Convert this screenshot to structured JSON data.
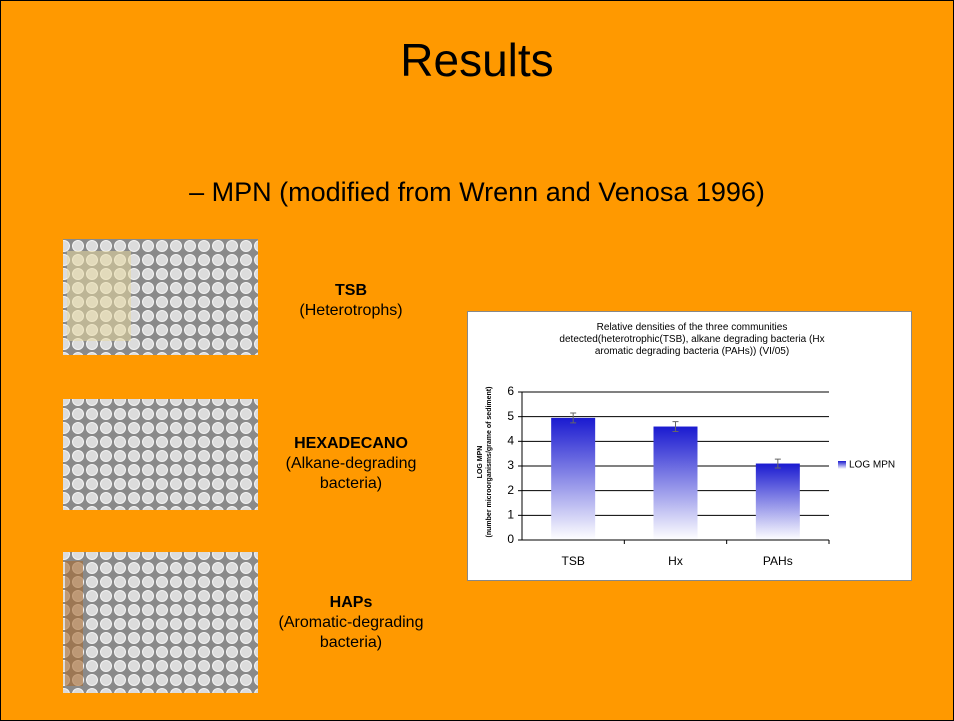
{
  "slide": {
    "title": "Results",
    "bullet": "– MPN (modified from Wrenn and Venosa 1996)",
    "panels": [
      {
        "name": "TSB",
        "desc": "(Heterotrophs)"
      },
      {
        "name": "HEXADECANO",
        "desc": "(Alkane-degrading bacteria)"
      },
      {
        "name": "HAPs",
        "desc": "(Aromatic-degrading bacteria)"
      }
    ]
  },
  "chart_data": {
    "type": "bar",
    "title": "Relative densities of the three communities detected(heterotrophic(TSB), alkane degrading bacteria (Hx aromatic degrading bacteria (PAHs)) (VI/05)",
    "ylabel": "LOG MPN",
    "ylabel_sub": "(number microorganisms/grame of sediment)",
    "categories": [
      "TSB",
      "Hx",
      "PAHs"
    ],
    "series": [
      {
        "name": "LOG MPN",
        "color": "#1a1ad0",
        "values": [
          4.95,
          4.6,
          3.1
        ],
        "errors": [
          0.2,
          0.2,
          0.18
        ]
      }
    ],
    "ylim": [
      0,
      6
    ],
    "yticks": [
      0,
      1,
      2,
      3,
      4,
      5,
      6
    ],
    "grid": true,
    "legend": "right"
  }
}
